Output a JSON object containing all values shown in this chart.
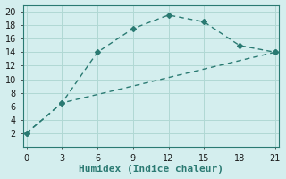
{
  "xlabel": "Humidex (Indice chaleur)",
  "line1_x": [
    0,
    3,
    6,
    9,
    12,
    15,
    18,
    21
  ],
  "line1_y": [
    2,
    6.5,
    14,
    17.5,
    19.5,
    18.5,
    15,
    14
  ],
  "line2_x": [
    0,
    3,
    21
  ],
  "line2_y": [
    2,
    6.5,
    14
  ],
  "line_color": "#2a7a72",
  "marker": "D",
  "markersize": 3.0,
  "xlim": [
    -0.3,
    21.3
  ],
  "ylim": [
    0,
    21
  ],
  "xticks": [
    0,
    3,
    6,
    9,
    12,
    15,
    18,
    21
  ],
  "yticks": [
    2,
    4,
    6,
    8,
    10,
    12,
    14,
    16,
    18,
    20
  ],
  "bg_color": "#d4eeee",
  "grid_color": "#b0d8d4",
  "tick_fontsize": 7,
  "label_fontsize": 8,
  "linewidth": 1.0,
  "dash_pattern": [
    4,
    3
  ]
}
